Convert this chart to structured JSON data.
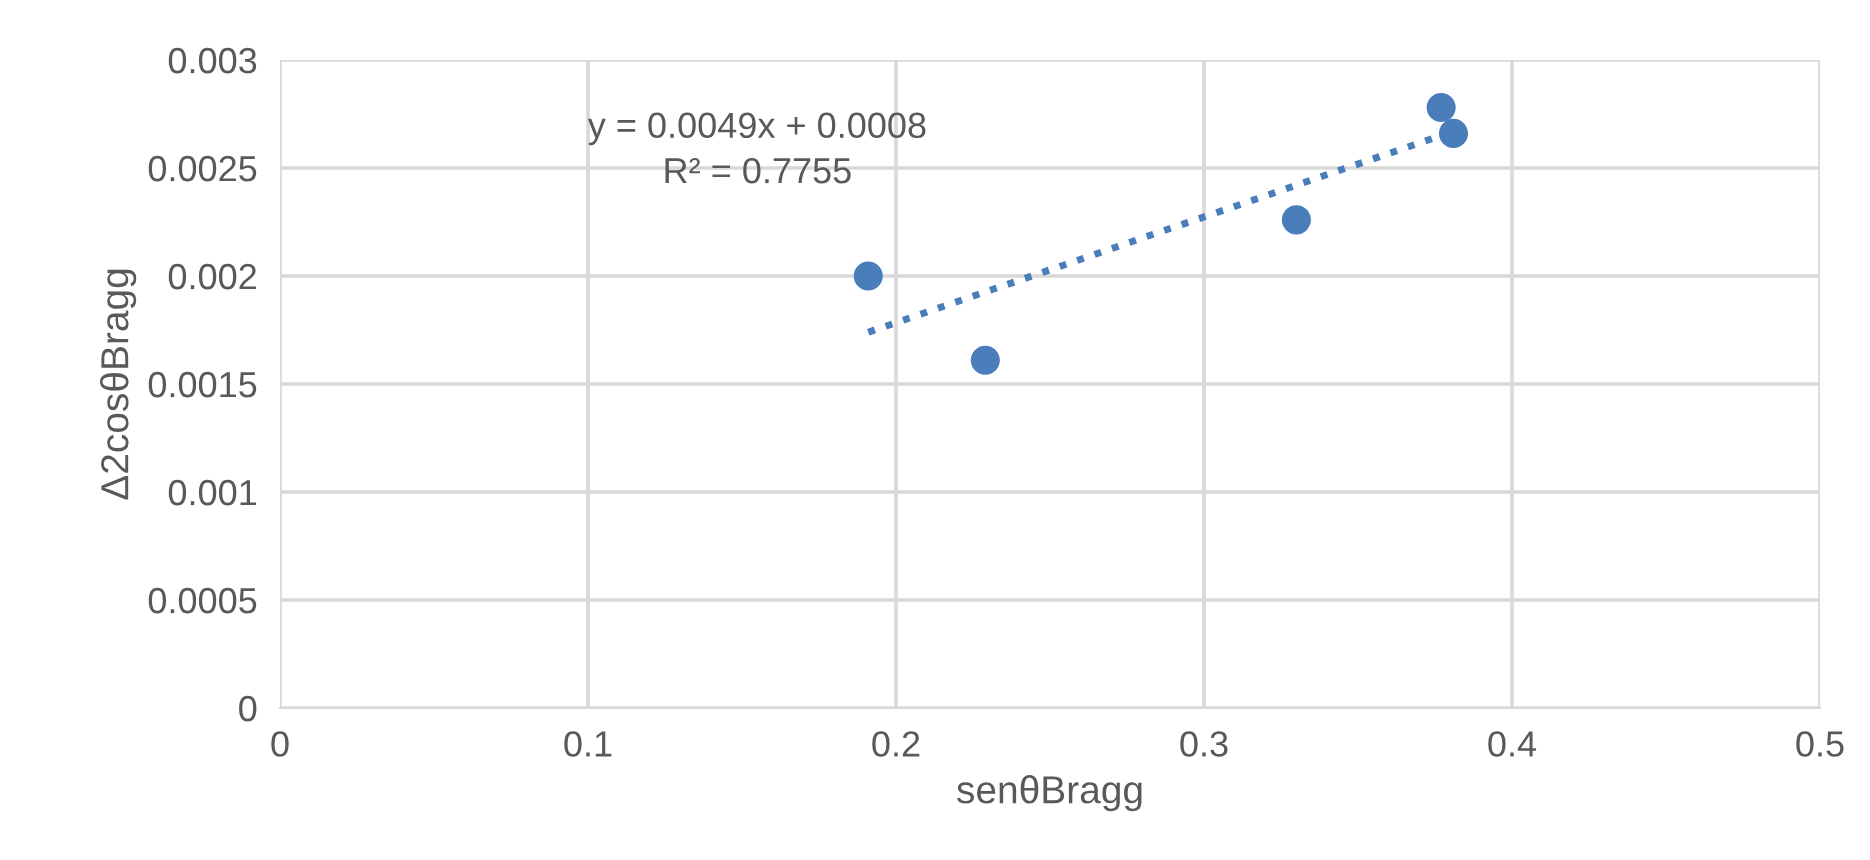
{
  "chart_data": {
    "type": "scatter",
    "xlabel": "senθBragg",
    "ylabel": "Δ2cosθBragg",
    "series": [
      {
        "color": "#4a7ebb",
        "marker": "circle",
        "x": [
          0.191,
          0.229,
          0.33,
          0.377,
          0.381
        ],
        "values": [
          0.002,
          0.00161,
          0.00226,
          0.00278,
          0.00266
        ]
      },
      {
        "type": "line",
        "color": "#4a7ebb",
        "line_style": "dotted",
        "marker": "none",
        "x": [
          0.191,
          0.381
        ],
        "values": [
          0.00174,
          0.00267
        ]
      }
    ],
    "annotations": [
      "y = 0.0049x + 0.0008",
      "R² = 0.7755"
    ],
    "xlim": [
      0,
      0.5
    ],
    "xticks": [
      0,
      0.1,
      0.2,
      0.3,
      0.4,
      0.5
    ],
    "ylim": [
      0,
      0.003
    ],
    "yticks": [
      0,
      0.0005,
      0.001,
      0.0015,
      0.002,
      0.0025,
      0.003
    ],
    "grid": true,
    "legend": false
  }
}
